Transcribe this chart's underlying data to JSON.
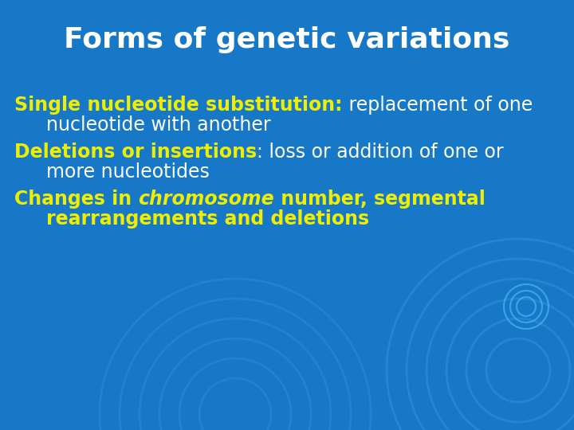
{
  "title": "Forms of genetic variations",
  "title_color": "#FFFFFF",
  "title_fontsize": 26,
  "bg_color": "#1878C8",
  "line1_bold": "Single nucleotide substitution:",
  "line1_normal": " replacement of one",
  "line1_cont": "nucleotide with another",
  "line2_bold": "Deletions or insertions",
  "line2_normal": ": loss or addition of one or",
  "line2_cont": "more nucleotides",
  "line3_part1": "Changes in ",
  "line3_italic": "chromosome",
  "line3_part2": " number, segmental",
  "line3_cont": "rearrangements and deletions",
  "yellow_color": "#EEEE00",
  "white_color": "#FFFFFF",
  "body_fontsize": 17,
  "figsize": [
    7.2,
    5.4
  ],
  "dpi": 100,
  "circle_color": "#3a9ad9",
  "circle_alpha": 0.4
}
